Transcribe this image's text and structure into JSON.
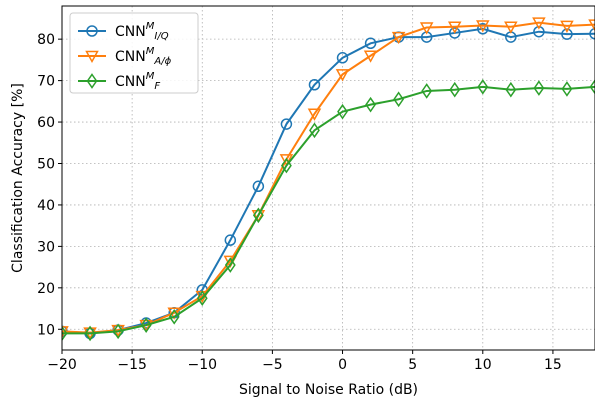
{
  "chart_data": {
    "type": "line",
    "xlabel": "Signal to Noise Ratio (dB)",
    "ylabel": "Classification Accuracy [%]",
    "xlim": [
      -20,
      18
    ],
    "ylim": [
      5,
      88
    ],
    "xticks": [
      -20,
      -15,
      -10,
      -5,
      0,
      5,
      10,
      15
    ],
    "yticks": [
      10,
      20,
      30,
      40,
      50,
      60,
      70,
      80
    ],
    "grid": true,
    "legend_position": "top-left",
    "x": [
      -20,
      -18,
      -16,
      -14,
      -12,
      -10,
      -8,
      -6,
      -4,
      -2,
      0,
      2,
      4,
      6,
      8,
      10,
      12,
      14,
      16,
      18
    ],
    "series": [
      {
        "name": "CNN",
        "name_sup": "M",
        "name_sub": "I/Q",
        "color": "#1f77b4",
        "marker": "circle",
        "values": [
          9.5,
          9.0,
          9.8,
          11.5,
          14.0,
          19.5,
          31.5,
          44.5,
          59.5,
          69.0,
          75.5,
          79.0,
          80.5,
          80.5,
          81.5,
          82.5,
          80.5,
          81.8,
          81.2,
          81.3
        ]
      },
      {
        "name": "CNN",
        "name_sup": "M",
        "name_sub": "A/ϕ",
        "color": "#ff7f0e",
        "marker": "triangle-down",
        "values": [
          9.5,
          9.2,
          9.8,
          11.0,
          14.0,
          18.0,
          26.5,
          37.5,
          51.0,
          62.0,
          71.5,
          76.0,
          80.5,
          82.8,
          83.0,
          83.3,
          83.0,
          84.0,
          83.2,
          83.5
        ]
      },
      {
        "name": "CNN",
        "name_sup": "M",
        "name_sub": "F",
        "color": "#2ca02c",
        "marker": "diamond",
        "values": [
          9.0,
          9.0,
          9.5,
          11.0,
          13.0,
          17.5,
          25.5,
          37.5,
          49.5,
          58.0,
          62.5,
          64.2,
          65.5,
          67.5,
          67.8,
          68.5,
          67.8,
          68.2,
          68.0,
          68.5
        ]
      }
    ]
  }
}
